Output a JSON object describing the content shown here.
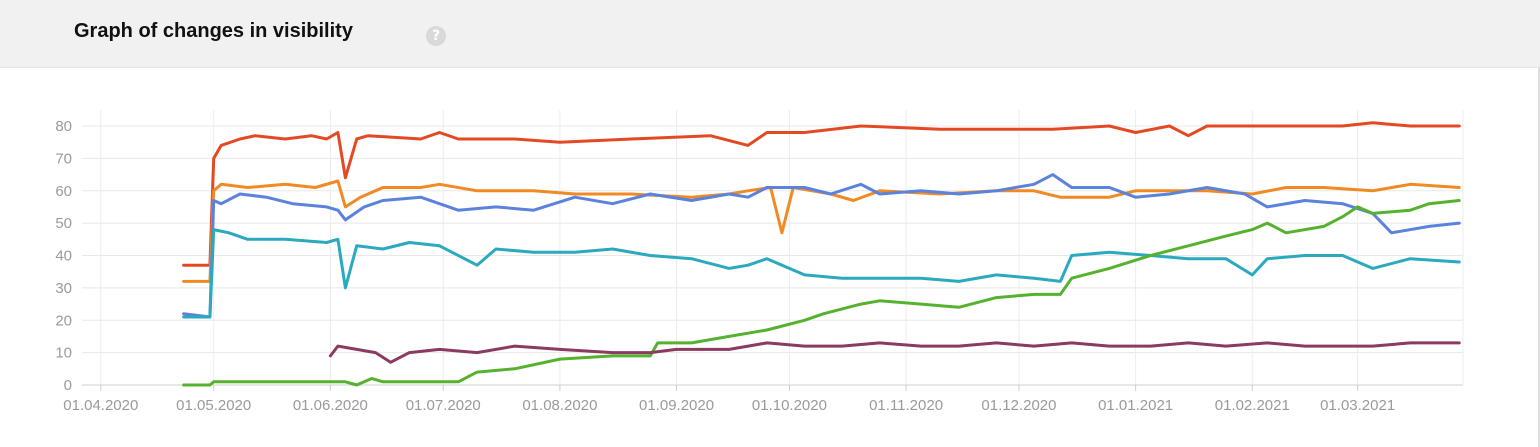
{
  "header": {
    "title": "Graph of changes in visibility",
    "help_icon": "question-icon"
  },
  "chart_data": {
    "type": "line",
    "title": "",
    "xlabel": "",
    "ylabel": "",
    "ylim": [
      0,
      80
    ],
    "yticks": [
      0,
      10,
      20,
      30,
      40,
      50,
      60,
      70,
      80
    ],
    "xticks": [
      "01.04.2020",
      "01.05.2020",
      "01.06.2020",
      "01.07.2020",
      "01.08.2020",
      "01.09.2020",
      "01.10.2020",
      "01.11.2020",
      "01.12.2020",
      "01.01.2021",
      "01.02.2021",
      "01.03.2021"
    ],
    "xrange": [
      "2020-03-27",
      "2021-03-29"
    ],
    "grid": true,
    "legend": "none",
    "series": [
      {
        "color": "#e34a24",
        "points": [
          [
            "2020-04-23",
            37
          ],
          [
            "2020-04-30",
            37
          ],
          [
            "2020-05-01",
            70
          ],
          [
            "2020-05-03",
            74
          ],
          [
            "2020-05-08",
            76
          ],
          [
            "2020-05-12",
            77
          ],
          [
            "2020-05-20",
            76
          ],
          [
            "2020-05-27",
            77
          ],
          [
            "2020-05-31",
            76
          ],
          [
            "2020-06-03",
            78
          ],
          [
            "2020-06-05",
            64
          ],
          [
            "2020-06-08",
            76
          ],
          [
            "2020-06-11",
            77
          ],
          [
            "2020-06-25",
            76
          ],
          [
            "2020-06-30",
            78
          ],
          [
            "2020-07-05",
            76
          ],
          [
            "2020-07-20",
            76
          ],
          [
            "2020-08-01",
            75
          ],
          [
            "2020-08-20",
            76
          ],
          [
            "2020-09-10",
            77
          ],
          [
            "2020-09-20",
            74
          ],
          [
            "2020-09-25",
            78
          ],
          [
            "2020-10-05",
            78
          ],
          [
            "2020-10-20",
            80
          ],
          [
            "2020-11-10",
            79
          ],
          [
            "2020-11-25",
            79
          ],
          [
            "2020-12-10",
            79
          ],
          [
            "2020-12-25",
            80
          ],
          [
            "2021-01-01",
            78
          ],
          [
            "2021-01-10",
            80
          ],
          [
            "2021-01-15",
            77
          ],
          [
            "2021-01-20",
            80
          ],
          [
            "2021-02-01",
            80
          ],
          [
            "2021-02-15",
            80
          ],
          [
            "2021-02-25",
            80
          ],
          [
            "2021-03-05",
            81
          ],
          [
            "2021-03-15",
            80
          ],
          [
            "2021-03-28",
            80
          ]
        ]
      },
      {
        "color": "#f08a24",
        "points": [
          [
            "2020-04-23",
            32
          ],
          [
            "2020-04-30",
            32
          ],
          [
            "2020-05-01",
            60
          ],
          [
            "2020-05-03",
            62
          ],
          [
            "2020-05-10",
            61
          ],
          [
            "2020-05-20",
            62
          ],
          [
            "2020-05-28",
            61
          ],
          [
            "2020-06-03",
            63
          ],
          [
            "2020-06-05",
            55
          ],
          [
            "2020-06-09",
            58
          ],
          [
            "2020-06-15",
            61
          ],
          [
            "2020-06-25",
            61
          ],
          [
            "2020-06-30",
            62
          ],
          [
            "2020-07-10",
            60
          ],
          [
            "2020-07-25",
            60
          ],
          [
            "2020-08-05",
            59
          ],
          [
            "2020-08-20",
            59
          ],
          [
            "2020-09-05",
            58
          ],
          [
            "2020-09-15",
            59
          ],
          [
            "2020-09-20",
            60
          ],
          [
            "2020-09-26",
            61
          ],
          [
            "2020-09-29",
            47
          ],
          [
            "2020-10-02",
            61
          ],
          [
            "2020-10-12",
            59
          ],
          [
            "2020-10-18",
            57
          ],
          [
            "2020-10-25",
            60
          ],
          [
            "2020-11-10",
            59
          ],
          [
            "2020-11-25",
            60
          ],
          [
            "2020-12-05",
            60
          ],
          [
            "2020-12-12",
            58
          ],
          [
            "2020-12-25",
            58
          ],
          [
            "2021-01-01",
            60
          ],
          [
            "2021-01-20",
            60
          ],
          [
            "2021-02-01",
            59
          ],
          [
            "2021-02-10",
            61
          ],
          [
            "2021-02-20",
            61
          ],
          [
            "2021-03-05",
            60
          ],
          [
            "2021-03-15",
            62
          ],
          [
            "2021-03-28",
            61
          ]
        ]
      },
      {
        "color": "#5b82dc",
        "points": [
          [
            "2020-04-23",
            22
          ],
          [
            "2020-04-30",
            21
          ],
          [
            "2020-05-01",
            57
          ],
          [
            "2020-05-03",
            56
          ],
          [
            "2020-05-08",
            59
          ],
          [
            "2020-05-15",
            58
          ],
          [
            "2020-05-22",
            56
          ],
          [
            "2020-05-31",
            55
          ],
          [
            "2020-06-03",
            54
          ],
          [
            "2020-06-05",
            51
          ],
          [
            "2020-06-10",
            55
          ],
          [
            "2020-06-15",
            57
          ],
          [
            "2020-06-25",
            58
          ],
          [
            "2020-06-30",
            56
          ],
          [
            "2020-07-05",
            54
          ],
          [
            "2020-07-15",
            55
          ],
          [
            "2020-07-25",
            54
          ],
          [
            "2020-08-05",
            58
          ],
          [
            "2020-08-15",
            56
          ],
          [
            "2020-08-25",
            59
          ],
          [
            "2020-09-05",
            57
          ],
          [
            "2020-09-15",
            59
          ],
          [
            "2020-09-20",
            58
          ],
          [
            "2020-09-25",
            61
          ],
          [
            "2020-10-05",
            61
          ],
          [
            "2020-10-12",
            59
          ],
          [
            "2020-10-20",
            62
          ],
          [
            "2020-10-25",
            59
          ],
          [
            "2020-11-05",
            60
          ],
          [
            "2020-11-15",
            59
          ],
          [
            "2020-11-25",
            60
          ],
          [
            "2020-12-05",
            62
          ],
          [
            "2020-12-10",
            65
          ],
          [
            "2020-12-15",
            61
          ],
          [
            "2020-12-25",
            61
          ],
          [
            "2021-01-01",
            58
          ],
          [
            "2021-01-10",
            59
          ],
          [
            "2021-01-20",
            61
          ],
          [
            "2021-01-30",
            59
          ],
          [
            "2021-02-05",
            55
          ],
          [
            "2021-02-15",
            57
          ],
          [
            "2021-02-25",
            56
          ],
          [
            "2021-03-05",
            53
          ],
          [
            "2021-03-10",
            47
          ],
          [
            "2021-03-20",
            49
          ],
          [
            "2021-03-28",
            50
          ]
        ]
      },
      {
        "color": "#2aa9bf",
        "points": [
          [
            "2020-04-23",
            21
          ],
          [
            "2020-04-30",
            21
          ],
          [
            "2020-05-01",
            48
          ],
          [
            "2020-05-05",
            47
          ],
          [
            "2020-05-10",
            45
          ],
          [
            "2020-05-20",
            45
          ],
          [
            "2020-05-31",
            44
          ],
          [
            "2020-06-03",
            45
          ],
          [
            "2020-06-05",
            30
          ],
          [
            "2020-06-08",
            43
          ],
          [
            "2020-06-15",
            42
          ],
          [
            "2020-06-22",
            44
          ],
          [
            "2020-06-30",
            43
          ],
          [
            "2020-07-10",
            37
          ],
          [
            "2020-07-15",
            42
          ],
          [
            "2020-07-25",
            41
          ],
          [
            "2020-08-05",
            41
          ],
          [
            "2020-08-15",
            42
          ],
          [
            "2020-08-25",
            40
          ],
          [
            "2020-09-05",
            39
          ],
          [
            "2020-09-15",
            36
          ],
          [
            "2020-09-20",
            37
          ],
          [
            "2020-09-25",
            39
          ],
          [
            "2020-10-05",
            34
          ],
          [
            "2020-10-15",
            33
          ],
          [
            "2020-10-25",
            33
          ],
          [
            "2020-11-05",
            33
          ],
          [
            "2020-11-15",
            32
          ],
          [
            "2020-11-25",
            34
          ],
          [
            "2020-12-05",
            33
          ],
          [
            "2020-12-12",
            32
          ],
          [
            "2020-12-15",
            40
          ],
          [
            "2020-12-25",
            41
          ],
          [
            "2021-01-05",
            40
          ],
          [
            "2021-01-15",
            39
          ],
          [
            "2021-01-25",
            39
          ],
          [
            "2021-02-01",
            34
          ],
          [
            "2021-02-05",
            39
          ],
          [
            "2021-02-15",
            40
          ],
          [
            "2021-02-25",
            40
          ],
          [
            "2021-03-05",
            36
          ],
          [
            "2021-03-15",
            39
          ],
          [
            "2021-03-28",
            38
          ]
        ]
      },
      {
        "color": "#56b22e",
        "points": [
          [
            "2020-04-23",
            0
          ],
          [
            "2020-04-30",
            0
          ],
          [
            "2020-05-01",
            1
          ],
          [
            "2020-05-10",
            1
          ],
          [
            "2020-05-20",
            1
          ],
          [
            "2020-06-05",
            1
          ],
          [
            "2020-06-08",
            0
          ],
          [
            "2020-06-12",
            2
          ],
          [
            "2020-06-15",
            1
          ],
          [
            "2020-06-25",
            1
          ],
          [
            "2020-07-05",
            1
          ],
          [
            "2020-07-10",
            4
          ],
          [
            "2020-07-20",
            5
          ],
          [
            "2020-08-01",
            8
          ],
          [
            "2020-08-15",
            9
          ],
          [
            "2020-08-25",
            9
          ],
          [
            "2020-08-27",
            13
          ],
          [
            "2020-09-05",
            13
          ],
          [
            "2020-09-15",
            15
          ],
          [
            "2020-09-20",
            16
          ],
          [
            "2020-09-25",
            17
          ],
          [
            "2020-10-05",
            20
          ],
          [
            "2020-10-10",
            22
          ],
          [
            "2020-10-20",
            25
          ],
          [
            "2020-10-25",
            26
          ],
          [
            "2020-11-05",
            25
          ],
          [
            "2020-11-15",
            24
          ],
          [
            "2020-11-25",
            27
          ],
          [
            "2020-12-05",
            28
          ],
          [
            "2020-12-12",
            28
          ],
          [
            "2020-12-15",
            33
          ],
          [
            "2020-12-25",
            36
          ],
          [
            "2021-01-05",
            40
          ],
          [
            "2021-01-15",
            43
          ],
          [
            "2021-01-25",
            46
          ],
          [
            "2021-02-01",
            48
          ],
          [
            "2021-02-05",
            50
          ],
          [
            "2021-02-10",
            47
          ],
          [
            "2021-02-20",
            49
          ],
          [
            "2021-02-25",
            52
          ],
          [
            "2021-03-01",
            55
          ],
          [
            "2021-03-05",
            53
          ],
          [
            "2021-03-15",
            54
          ],
          [
            "2021-03-20",
            56
          ],
          [
            "2021-03-28",
            57
          ]
        ]
      },
      {
        "color": "#8b3a62",
        "points": [
          [
            "2020-06-01",
            9
          ],
          [
            "2020-06-03",
            12
          ],
          [
            "2020-06-08",
            11
          ],
          [
            "2020-06-13",
            10
          ],
          [
            "2020-06-17",
            7
          ],
          [
            "2020-06-22",
            10
          ],
          [
            "2020-06-30",
            11
          ],
          [
            "2020-07-10",
            10
          ],
          [
            "2020-07-20",
            12
          ],
          [
            "2020-08-01",
            11
          ],
          [
            "2020-08-15",
            10
          ],
          [
            "2020-08-25",
            10
          ],
          [
            "2020-09-01",
            11
          ],
          [
            "2020-09-15",
            11
          ],
          [
            "2020-09-25",
            13
          ],
          [
            "2020-10-05",
            12
          ],
          [
            "2020-10-15",
            12
          ],
          [
            "2020-10-25",
            13
          ],
          [
            "2020-11-05",
            12
          ],
          [
            "2020-11-15",
            12
          ],
          [
            "2020-11-25",
            13
          ],
          [
            "2020-12-05",
            12
          ],
          [
            "2020-12-15",
            13
          ],
          [
            "2020-12-25",
            12
          ],
          [
            "2021-01-05",
            12
          ],
          [
            "2021-01-15",
            13
          ],
          [
            "2021-01-25",
            12
          ],
          [
            "2021-02-05",
            13
          ],
          [
            "2021-02-15",
            12
          ],
          [
            "2021-02-25",
            12
          ],
          [
            "2021-03-05",
            12
          ],
          [
            "2021-03-15",
            13
          ],
          [
            "2021-03-28",
            13
          ]
        ]
      }
    ]
  }
}
